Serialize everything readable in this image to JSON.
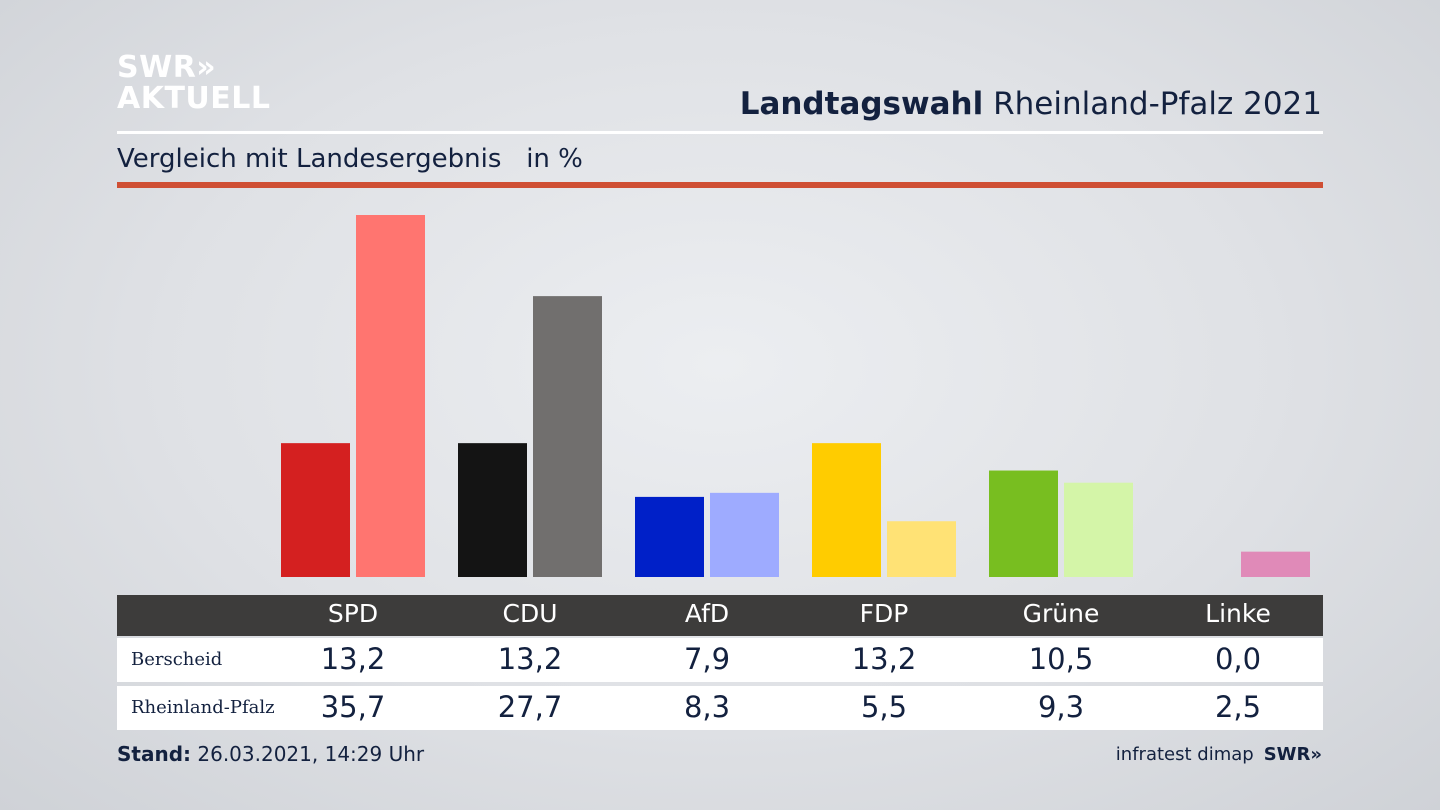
{
  "logo": {
    "line1": "SWR»",
    "line2": "AKTUELL"
  },
  "header": {
    "title_bold": "Landtagswahl",
    "title_rest": " Rheinland-Pfalz 2021"
  },
  "subtitle": "Vergleich mit Landesergebnis   in %",
  "chart_data": {
    "type": "bar",
    "title": "Landtagswahl Rheinland-Pfalz 2021",
    "subtitle": "Vergleich mit Landesergebnis in %",
    "categories": [
      "SPD",
      "CDU",
      "AfD",
      "FDP",
      "Grüne",
      "Linke"
    ],
    "series": [
      {
        "name": "Berscheid",
        "values": [
          13.2,
          13.2,
          7.9,
          13.2,
          10.5,
          0.0
        ],
        "display": [
          "13,2",
          "13,2",
          "7,9",
          "13,2",
          "10,5",
          "0,0"
        ],
        "colors": [
          "#d42020",
          "#141414",
          "#0020c8",
          "#ffcc00",
          "#78be20",
          "#c0267a"
        ]
      },
      {
        "name": "Rheinland-Pfalz",
        "values": [
          35.7,
          27.7,
          8.3,
          5.5,
          9.3,
          2.5
        ],
        "display": [
          "35,7",
          "27,7",
          "8,3",
          "5,5",
          "9,3",
          "2,5"
        ],
        "colors": [
          "#ff7570",
          "#716f6e",
          "#9eabff",
          "#ffe275",
          "#d4f5a8",
          "#e08ab8"
        ]
      }
    ],
    "ylim": [
      0,
      36
    ],
    "grid": false
  },
  "footer": {
    "stand_label": "Stand:",
    "stand_value": " 26.03.2021, 14:29 Uhr",
    "source": "infratest dimap",
    "brand": "SWR»"
  }
}
